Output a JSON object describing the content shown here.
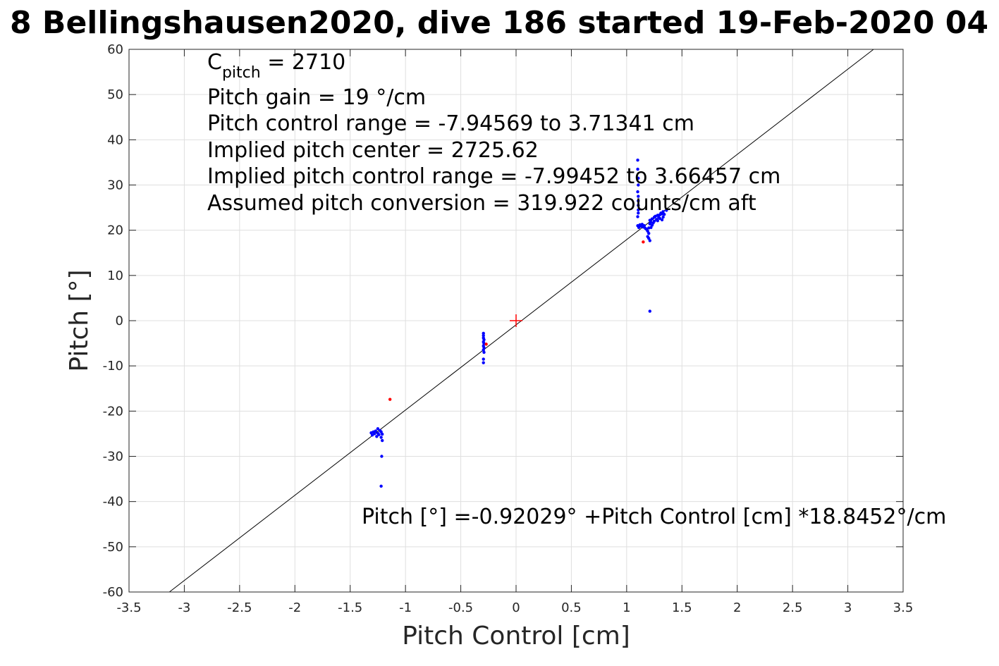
{
  "chart_data": {
    "type": "scatter",
    "title": "8 Bellingshausen2020, dive 186 started 19-Feb-2020 04",
    "xlabel": "Pitch Control [cm]",
    "ylabel": "Pitch [°]",
    "xlim": [
      -3.5,
      3.5
    ],
    "ylim": [
      -60,
      60
    ],
    "x_ticks": [
      -3.5,
      -3,
      -2.5,
      -2,
      -1.5,
      -1,
      -0.5,
      0,
      0.5,
      1,
      1.5,
      2,
      2.5,
      3,
      3.5
    ],
    "y_ticks": [
      -60,
      -50,
      -40,
      -30,
      -20,
      -10,
      0,
      10,
      20,
      30,
      40,
      50,
      60
    ],
    "grid": true,
    "annotations": {
      "cpitch_base": "C",
      "cpitch_sub": "pitch",
      "cpitch_value": " = 2710",
      "lines": [
        "Pitch gain = 19 °/cm",
        "Pitch control range = -7.94569 to 3.71341 cm",
        "Implied pitch center = 2725.62",
        "Implied pitch control range = -7.99452 to 3.66457 cm",
        "Assumed pitch conversion = 319.922 counts/cm aft"
      ],
      "fit_equation": "Pitch [°] =-0.92029° +Pitch Control [cm] *18.8452°/cm"
    },
    "fit_line": {
      "intercept": -0.92029,
      "slope": 18.8452,
      "color": "#000000"
    },
    "center_marker": {
      "x": 0,
      "y": 0,
      "color": "#ff0000"
    },
    "series": [
      {
        "color": "#0000ff",
        "points": [
          [
            1.1,
            35.5
          ],
          [
            1.1,
            33.5
          ],
          [
            1.105,
            31.5
          ],
          [
            1.105,
            30.0
          ],
          [
            1.1,
            28.5
          ],
          [
            1.105,
            27.5
          ],
          [
            1.105,
            26.5
          ],
          [
            1.105,
            25.5
          ],
          [
            1.105,
            24.5
          ],
          [
            1.105,
            23.8
          ],
          [
            1.1,
            23.0
          ],
          [
            1.1,
            21.0
          ],
          [
            1.11,
            20.6
          ],
          [
            1.12,
            21.2
          ],
          [
            1.13,
            20.9
          ],
          [
            1.14,
            21.3
          ],
          [
            1.15,
            20.7
          ],
          [
            1.16,
            21.0
          ],
          [
            1.17,
            20.4
          ],
          [
            1.18,
            20.2
          ],
          [
            1.19,
            19.8
          ],
          [
            1.2,
            19.3
          ],
          [
            1.2,
            20.5
          ],
          [
            1.21,
            21.4
          ],
          [
            1.21,
            22.2
          ],
          [
            1.22,
            20.6
          ],
          [
            1.22,
            21.8
          ],
          [
            1.23,
            21.1
          ],
          [
            1.23,
            22.5
          ],
          [
            1.24,
            21.6
          ],
          [
            1.25,
            22.9
          ],
          [
            1.25,
            22.0
          ],
          [
            1.26,
            23.1
          ],
          [
            1.27,
            22.4
          ],
          [
            1.28,
            23.3
          ],
          [
            1.28,
            22.1
          ],
          [
            1.29,
            22.8
          ],
          [
            1.3,
            23.4
          ],
          [
            1.3,
            22.6
          ],
          [
            1.31,
            23.8
          ],
          [
            1.32,
            22.3
          ],
          [
            1.32,
            23.6
          ],
          [
            1.33,
            24.1
          ],
          [
            1.33,
            22.9
          ],
          [
            1.34,
            23.5
          ],
          [
            1.36,
            24.4
          ],
          [
            1.21,
            17.7
          ],
          [
            1.19,
            18.6
          ],
          [
            1.2,
            18.2
          ],
          [
            1.21,
            2.1
          ],
          [
            -0.295,
            -2.8
          ],
          [
            -0.295,
            -3.3
          ],
          [
            -0.295,
            -3.8
          ],
          [
            -0.29,
            -4.2
          ],
          [
            -0.295,
            -4.7
          ],
          [
            -0.29,
            -5.1
          ],
          [
            -0.295,
            -5.6
          ],
          [
            -0.29,
            -6.0
          ],
          [
            -0.295,
            -6.5
          ],
          [
            -0.29,
            -7.0
          ],
          [
            -0.295,
            -8.5
          ],
          [
            -0.295,
            -9.3
          ],
          [
            -1.31,
            -24.8
          ],
          [
            -1.3,
            -25.3
          ],
          [
            -1.29,
            -24.6
          ],
          [
            -1.28,
            -25.0
          ],
          [
            -1.27,
            -24.4
          ],
          [
            -1.26,
            -25.6
          ],
          [
            -1.25,
            -23.9
          ],
          [
            -1.25,
            -24.9
          ],
          [
            -1.24,
            -25.2
          ],
          [
            -1.23,
            -24.3
          ],
          [
            -1.22,
            -25.8
          ],
          [
            -1.22,
            -24.6
          ],
          [
            -1.21,
            -25.1
          ],
          [
            -1.21,
            -26.5
          ],
          [
            -1.215,
            -30.0
          ],
          [
            -1.22,
            -36.6
          ]
        ]
      },
      {
        "color": "#ff0000",
        "points": [
          [
            1.15,
            17.4
          ],
          [
            -0.27,
            -5.2
          ],
          [
            -1.14,
            -17.4
          ]
        ]
      }
    ]
  }
}
